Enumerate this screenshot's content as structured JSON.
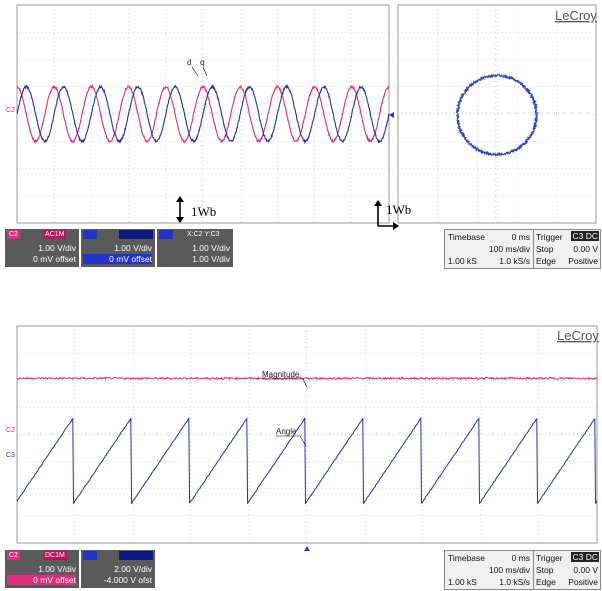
{
  "brand": "LeCroy",
  "colors": {
    "c2": "#e02c7c",
    "c3": "#2233aa",
    "xy": "#2840b8",
    "panel": "#5a5a5a"
  },
  "top": {
    "annotations": {
      "d": "d",
      "q": "q",
      "flux_left": "1Wb",
      "flux_right": "1Wb"
    },
    "channels": [
      {
        "tag": "C2",
        "badge": "AC1M",
        "line1": "1.00 V/div",
        "line2": "0 mV offset"
      },
      {
        "tag": "",
        "badge": "",
        "line1": "1.00 V/div",
        "line2": "0 mV offset"
      },
      {
        "tag": "",
        "badge": "X:C2 Y:C3",
        "line1": "1.00 V/div",
        "line2": "1.00 V/div"
      }
    ],
    "timebase": {
      "label": "Timebase",
      "delay": "0 ms",
      "per_div": "100 ms/div",
      "samples": "1.00 kS",
      "rate": "1.0 kS/s"
    },
    "trigger": {
      "label": "Trigger",
      "source": "C3 DC",
      "mode": "Stop",
      "level": "0.00 V",
      "type": "Edge",
      "slope": "Positive"
    },
    "trace_labels": {
      "ch2": "C2"
    }
  },
  "bottom": {
    "annotations": {
      "magnitude": "Magnitude",
      "angle": "Angle"
    },
    "channels": [
      {
        "tag": "C2",
        "badge": "DC1M",
        "line1": "1.00 V/div",
        "line2": "0 mV offset"
      },
      {
        "tag": "",
        "badge": "",
        "line1": "2.00 V/div",
        "line2": "-4.000 V ofst"
      }
    ],
    "timebase": {
      "label": "Timebase",
      "delay": "0 ms",
      "per_div": "100 ms/div",
      "samples": "1.00 kS",
      "rate": "1.0 kS/s"
    },
    "trigger": {
      "label": "Trigger",
      "source": "C3 DC",
      "mode": "Stop",
      "level": "0.00 V",
      "type": "Edge",
      "slope": "Positive"
    },
    "trace_labels": {
      "ch2": "C2",
      "ch3": "C3"
    }
  },
  "chart_data": [
    {
      "type": "line",
      "title": "",
      "description_ref": "top-left time plot: stator flux components d and q",
      "series": [
        {
          "name": "d",
          "kind": "sine",
          "amplitude_div": 1.0,
          "cycles_per_div": 1.0,
          "phase_deg": 90
        },
        {
          "name": "q",
          "kind": "sine",
          "amplitude_div": 1.0,
          "cycles_per_div": 1.0,
          "phase_deg": 0
        }
      ],
      "x_divisions": 10,
      "y_divisions": 8,
      "grid": true
    },
    {
      "type": "scatter",
      "description_ref": "top-right XY plot (X:C2, Y:C3): circular flux locus",
      "radius_div": 1.0,
      "grid": true
    },
    {
      "type": "line",
      "description_ref": "bottom plot: flux magnitude (constant) and angle (sawtooth)",
      "series": [
        {
          "name": "Magnitude",
          "kind": "constant",
          "level_div": 1.5
        },
        {
          "name": "Angle",
          "kind": "sawtooth",
          "cycles_per_div": 1.0,
          "low_div": -2.2,
          "high_div": 1.1
        }
      ],
      "x_divisions": 10,
      "y_divisions": 8,
      "grid": true
    }
  ]
}
